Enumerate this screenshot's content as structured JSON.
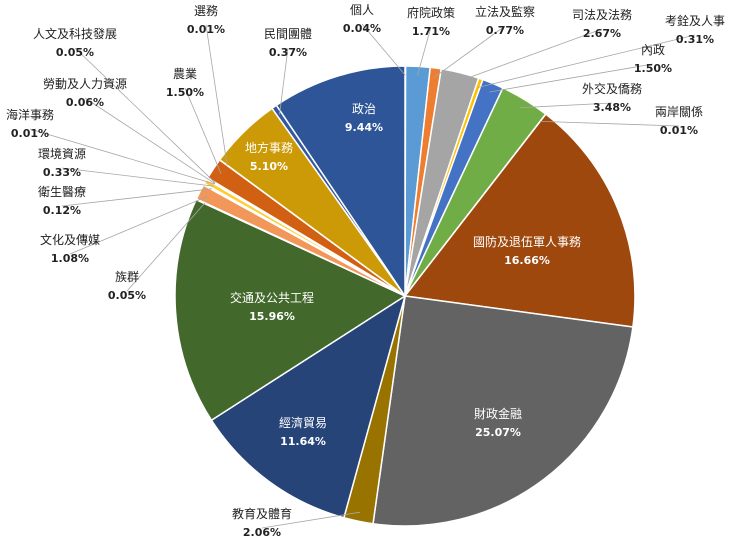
{
  "chart_data": {
    "type": "pie",
    "slices": [
      {
        "label": "個人",
        "value": 0.04,
        "pct": "0.04%",
        "color": "#4a7d2c"
      },
      {
        "label": "府院政策",
        "value": 1.71,
        "pct": "1.71%",
        "color": "#5b9bd5"
      },
      {
        "label": "立法及監察",
        "value": 0.77,
        "pct": "0.77%",
        "color": "#ed7d31"
      },
      {
        "label": "司法及法務",
        "value": 2.67,
        "pct": "2.67%",
        "color": "#a5a5a5"
      },
      {
        "label": "考銓及人事",
        "value": 0.31,
        "pct": "0.31%",
        "color": "#ffc000"
      },
      {
        "label": "內政",
        "value": 1.5,
        "pct": "1.50%",
        "color": "#4472c4"
      },
      {
        "label": "外交及僑務",
        "value": 3.48,
        "pct": "3.48%",
        "color": "#70ad47"
      },
      {
        "label": "兩岸關係",
        "value": 0.01,
        "pct": "0.01%",
        "color": "#264478"
      },
      {
        "label": "國防及退伍軍人事務",
        "value": 16.66,
        "pct": "16.66%",
        "color": "#9e480e"
      },
      {
        "label": "財政金融",
        "value": 25.07,
        "pct": "25.07%",
        "color": "#636363"
      },
      {
        "label": "教育及體育",
        "value": 2.06,
        "pct": "2.06%",
        "color": "#997300"
      },
      {
        "label": "經濟貿易",
        "value": 11.64,
        "pct": "11.64%",
        "color": "#264478"
      },
      {
        "label": "交通及公共工程",
        "value": 15.96,
        "pct": "15.96%",
        "color": "#43682b"
      },
      {
        "label": "族群",
        "value": 0.05,
        "pct": "0.05%",
        "color": "#7cafdd"
      },
      {
        "label": "文化及傳媒",
        "value": 1.08,
        "pct": "1.08%",
        "color": "#f1975a"
      },
      {
        "label": "衛生醫療",
        "value": 0.12,
        "pct": "0.12%",
        "color": "#b7b7b7"
      },
      {
        "label": "環境資源",
        "value": 0.33,
        "pct": "0.33%",
        "color": "#ffcd33"
      },
      {
        "label": "海洋事務",
        "value": 0.01,
        "pct": "0.01%",
        "color": "#698ed0"
      },
      {
        "label": "勞動及人力資源",
        "value": 0.06,
        "pct": "0.06%",
        "color": "#8cc168"
      },
      {
        "label": "人文及科技發展",
        "value": 0.05,
        "pct": "0.05%",
        "color": "#327dc2"
      },
      {
        "label": "農業",
        "value": 1.5,
        "pct": "1.50%",
        "color": "#d26012"
      },
      {
        "label": "選務",
        "value": 0.01,
        "pct": "0.01%",
        "color": "#8a8a8a"
      },
      {
        "label": "地方事務",
        "value": 5.1,
        "pct": "5.10%",
        "color": "#cc9a06"
      },
      {
        "label": "民間團體",
        "value": 0.37,
        "pct": "0.37%",
        "color": "#335aa1"
      },
      {
        "label": "政治",
        "value": 9.44,
        "pct": "9.44%",
        "color": "#2e5597"
      }
    ]
  }
}
